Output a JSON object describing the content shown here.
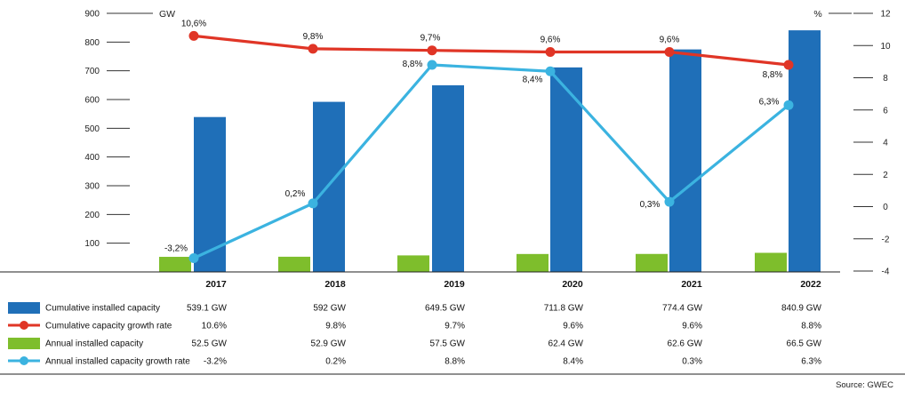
{
  "chart_data": {
    "type": "bar",
    "categories": [
      "2017",
      "2018",
      "2019",
      "2020",
      "2021",
      "2022"
    ],
    "left_axis": {
      "unit": "GW",
      "ticks": [
        "900",
        "800",
        "700",
        "600",
        "500",
        "400",
        "300",
        "200",
        "100"
      ],
      "ylim": [
        0,
        900
      ]
    },
    "right_axis": {
      "unit": "%",
      "ticks": [
        "12",
        "10",
        "8",
        "6",
        "4",
        "2",
        "0",
        "-2",
        "-4"
      ],
      "ylim": [
        -4,
        12
      ]
    },
    "series": [
      {
        "name": "Cumulative installed capacity",
        "kind": "bar",
        "axis": "left",
        "color": "#1f6fb8",
        "values": [
          539.1,
          592,
          649.5,
          711.8,
          774.4,
          840.9
        ],
        "table_values": [
          "539.1 GW",
          "592 GW",
          "649.5 GW",
          "711.8 GW",
          "774.4 GW",
          "840.9 GW"
        ]
      },
      {
        "name": "Cumulative capacity growth rate",
        "kind": "line",
        "axis": "right",
        "color": "#e03526",
        "values": [
          10.6,
          9.8,
          9.7,
          9.6,
          9.6,
          8.8
        ],
        "point_labels": [
          "10,6%",
          "9,8%",
          "9,7%",
          "9,6%",
          "9,6%",
          "8,8%"
        ],
        "table_values": [
          "10.6%",
          "9.8%",
          "9.7%",
          "9.6%",
          "9.6%",
          "8.8%"
        ]
      },
      {
        "name": "Annual installed capacity",
        "kind": "bar",
        "axis": "left",
        "color": "#7ebe2c",
        "values": [
          52.5,
          52.9,
          57.5,
          62.4,
          62.6,
          66.5
        ],
        "table_values": [
          "52.5 GW",
          "52.9 GW",
          "57.5 GW",
          "62.4 GW",
          "62.6 GW",
          "66.5 GW"
        ]
      },
      {
        "name": "Annual installed capacity growth rate",
        "kind": "line",
        "axis": "right",
        "color": "#3bb3e0",
        "values": [
          -3.2,
          0.2,
          8.8,
          8.4,
          0.3,
          6.3
        ],
        "point_labels": [
          "-3,2%",
          "0,2%",
          "8,8%",
          "8,4%",
          "0,3%",
          "6,3%"
        ],
        "table_values": [
          "-3.2%",
          "0.2%",
          "8.8%",
          "8.4%",
          "0.3%",
          "6.3%"
        ]
      }
    ],
    "grid": false,
    "legend": "data table below chart",
    "source": "Source: GWEC"
  }
}
